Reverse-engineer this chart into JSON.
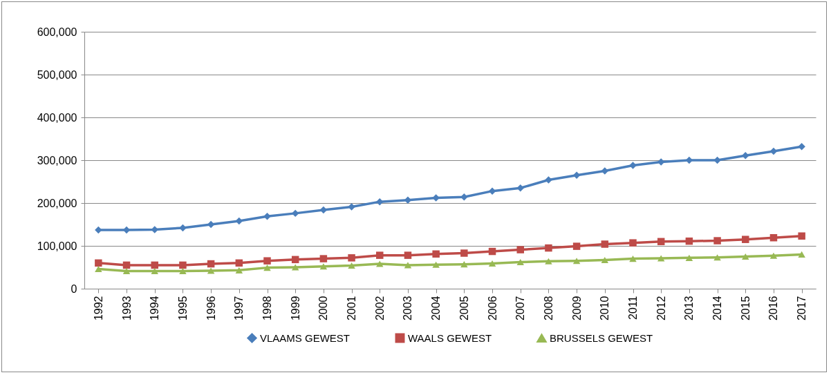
{
  "chart_data": {
    "type": "line",
    "categories": [
      "1992",
      "1993",
      "1994",
      "1995",
      "1996",
      "1997",
      "1998",
      "1999",
      "2000",
      "2001",
      "2002",
      "2003",
      "2004",
      "2005",
      "2006",
      "2007",
      "2008",
      "2009",
      "2010",
      "2011",
      "2012",
      "2013",
      "2014",
      "2015",
      "2016",
      "2017"
    ],
    "series": [
      {
        "name": "VLAAMS GEWEST",
        "color": "#4a7ebb",
        "marker": "diamond",
        "values": [
          137000,
          137000,
          138000,
          142000,
          150000,
          158000,
          169000,
          176000,
          184000,
          191000,
          203000,
          207000,
          212000,
          214000,
          228000,
          235000,
          254000,
          265000,
          275000,
          288000,
          296000,
          300000,
          300000,
          311000,
          321000,
          332000
        ]
      },
      {
        "name": "WAALS GEWEST",
        "color": "#be4b48",
        "marker": "square",
        "values": [
          60000,
          55000,
          55000,
          55000,
          58000,
          60000,
          65000,
          68000,
          70000,
          72000,
          78000,
          78000,
          81000,
          83000,
          87000,
          91000,
          95000,
          99000,
          104000,
          107000,
          110000,
          111000,
          112000,
          115000,
          119000,
          123000
        ]
      },
      {
        "name": "BRUSSELS GEWEST",
        "color": "#98b954",
        "marker": "triangle",
        "values": [
          46000,
          41000,
          41000,
          41000,
          42000,
          43000,
          49000,
          50000,
          52000,
          54000,
          58000,
          55000,
          56000,
          57000,
          59000,
          62000,
          64000,
          65000,
          67000,
          70000,
          71000,
          72000,
          73000,
          75000,
          77000,
          80000
        ]
      }
    ],
    "ylim": [
      0,
      600000
    ],
    "yticks": [
      0,
      {
        "value": 100000,
        "label": "100,000"
      },
      {
        "value": 200000,
        "label": "200,000"
      },
      {
        "value": 300000,
        "label": "300,000"
      },
      {
        "value": 400000,
        "label": "400,000"
      },
      {
        "value": 500000,
        "label": "500,000"
      },
      {
        "value": 600000,
        "label": "600,000"
      }
    ],
    "grid": "y",
    "legend": "bottom",
    "line_style": "solid"
  }
}
